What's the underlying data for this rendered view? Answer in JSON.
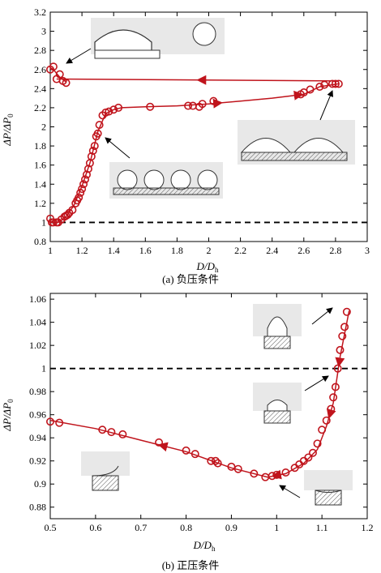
{
  "chart_data": [
    {
      "type": "scatter",
      "caption": "(a) 负压条件",
      "xlabel": "D/D",
      "xlabel_sub": "h",
      "ylabel": "ΔP/ΔP",
      "ylabel_sub": "0",
      "xlim": [
        1,
        3
      ],
      "ylim": [
        0.8,
        3.2
      ],
      "xticks": [
        1,
        1.2,
        1.4,
        1.6,
        1.8,
        2,
        2.2,
        2.4,
        2.6,
        2.8,
        3
      ],
      "yticks": [
        0.8,
        1,
        1.2,
        1.4,
        1.6,
        1.8,
        2,
        2.2,
        2.4,
        2.6,
        2.8,
        3,
        3.2
      ],
      "reference_line": 1,
      "colors": {
        "series": "#c0141c",
        "reference": "#000000"
      },
      "points": [
        [
          1.0,
          1.04
        ],
        [
          1.01,
          1.0
        ],
        [
          1.02,
          1.0
        ],
        [
          1.04,
          1.0
        ],
        [
          1.05,
          1.0
        ],
        [
          1.07,
          1.03
        ],
        [
          1.09,
          1.06
        ],
        [
          1.1,
          1.07
        ],
        [
          1.11,
          1.08
        ],
        [
          1.12,
          1.1
        ],
        [
          1.14,
          1.13
        ],
        [
          1.16,
          1.2
        ],
        [
          1.17,
          1.23
        ],
        [
          1.18,
          1.26
        ],
        [
          1.19,
          1.31
        ],
        [
          1.2,
          1.35
        ],
        [
          1.21,
          1.4
        ],
        [
          1.22,
          1.45
        ],
        [
          1.23,
          1.5
        ],
        [
          1.24,
          1.56
        ],
        [
          1.25,
          1.62
        ],
        [
          1.26,
          1.69
        ],
        [
          1.27,
          1.75
        ],
        [
          1.28,
          1.8
        ],
        [
          1.29,
          1.9
        ],
        [
          1.3,
          1.93
        ],
        [
          1.31,
          2.02
        ],
        [
          1.33,
          2.12
        ],
        [
          1.35,
          2.15
        ],
        [
          1.37,
          2.16
        ],
        [
          1.4,
          2.18
        ],
        [
          1.43,
          2.2
        ],
        [
          1.63,
          2.21
        ],
        [
          1.87,
          2.22
        ],
        [
          1.9,
          2.22
        ],
        [
          1.94,
          2.21
        ],
        [
          1.96,
          2.24
        ],
        [
          2.03,
          2.27
        ],
        [
          2.58,
          2.34
        ],
        [
          2.6,
          2.36
        ],
        [
          2.64,
          2.39
        ],
        [
          2.7,
          2.42
        ],
        [
          2.73,
          2.44
        ],
        [
          2.78,
          2.45
        ],
        [
          2.8,
          2.45
        ],
        [
          2.82,
          2.45
        ],
        [
          1.0,
          2.6
        ],
        [
          1.02,
          2.63
        ],
        [
          1.04,
          2.5
        ],
        [
          1.06,
          2.55
        ],
        [
          1.08,
          2.48
        ],
        [
          1.1,
          2.46
        ]
      ],
      "curves": [
        {
          "name": "loading",
          "x": [
            1.0,
            1.05,
            1.1,
            1.15,
            1.2,
            1.25,
            1.3,
            1.35,
            1.4,
            1.45,
            1.6,
            1.8,
            2.0,
            2.2,
            2.4,
            2.6,
            2.7,
            2.82
          ],
          "y": [
            1.0,
            1.0,
            1.06,
            1.18,
            1.38,
            1.62,
            1.95,
            2.14,
            2.18,
            2.2,
            2.21,
            2.22,
            2.24,
            2.27,
            2.3,
            2.34,
            2.42,
            2.45
          ],
          "arrows_at": [
            0.73,
            0.88
          ]
        },
        {
          "name": "unloading",
          "x": [
            2.82,
            1.04
          ],
          "y": [
            2.48,
            2.5
          ],
          "arrows_at": [
            0.5
          ]
        },
        {
          "name": "unloading-end",
          "x": [
            1.1,
            1.06,
            1.02,
            1.0
          ],
          "y": [
            2.47,
            2.52,
            2.6,
            2.62
          ]
        }
      ]
    },
    {
      "type": "scatter",
      "caption": "(b) 正压条件",
      "xlabel": "D/D",
      "xlabel_sub": "h",
      "ylabel": "ΔP/ΔP",
      "ylabel_sub": "0",
      "xlim": [
        0.5,
        1.2
      ],
      "ylim": [
        0.87,
        1.065
      ],
      "xticks": [
        0.5,
        0.6,
        0.7,
        0.8,
        0.9,
        1,
        1.1,
        1.2
      ],
      "yticks": [
        0.88,
        0.9,
        0.92,
        0.94,
        0.96,
        0.98,
        1,
        1.02,
        1.04,
        1.06
      ],
      "reference_line": 1,
      "colors": {
        "series": "#c0141c",
        "reference": "#000000"
      },
      "points": [
        [
          0.5,
          0.954
        ],
        [
          0.52,
          0.953
        ],
        [
          0.615,
          0.947
        ],
        [
          0.635,
          0.945
        ],
        [
          0.66,
          0.943
        ],
        [
          0.74,
          0.936
        ],
        [
          0.8,
          0.929
        ],
        [
          0.82,
          0.926
        ],
        [
          0.855,
          0.92
        ],
        [
          0.865,
          0.92
        ],
        [
          0.87,
          0.918
        ],
        [
          0.9,
          0.915
        ],
        [
          0.915,
          0.913
        ],
        [
          0.95,
          0.909
        ],
        [
          0.975,
          0.906
        ],
        [
          0.99,
          0.907
        ],
        [
          1.0,
          0.908
        ],
        [
          1.02,
          0.91
        ],
        [
          1.04,
          0.914
        ],
        [
          1.05,
          0.917
        ],
        [
          1.06,
          0.92
        ],
        [
          1.07,
          0.923
        ],
        [
          1.08,
          0.927
        ],
        [
          1.09,
          0.935
        ],
        [
          1.1,
          0.947
        ],
        [
          1.11,
          0.955
        ],
        [
          1.12,
          0.965
        ],
        [
          1.125,
          0.975
        ],
        [
          1.13,
          0.984
        ],
        [
          1.135,
          1.0
        ],
        [
          1.14,
          1.016
        ],
        [
          1.145,
          1.028
        ],
        [
          1.15,
          1.036
        ],
        [
          1.155,
          1.049
        ]
      ],
      "curves": [
        {
          "name": "curve",
          "x": [
            1.16,
            1.14,
            1.125,
            1.11,
            1.09,
            1.06,
            1.02,
            0.98,
            0.9,
            0.8,
            0.7,
            0.6,
            0.5
          ],
          "y": [
            1.05,
            1.01,
            0.97,
            0.95,
            0.93,
            0.918,
            0.909,
            0.906,
            0.914,
            0.928,
            0.938,
            0.948,
            0.955
          ],
          "arrows_at": [
            0.1,
            0.22,
            0.56,
            0.8
          ]
        }
      ]
    }
  ]
}
